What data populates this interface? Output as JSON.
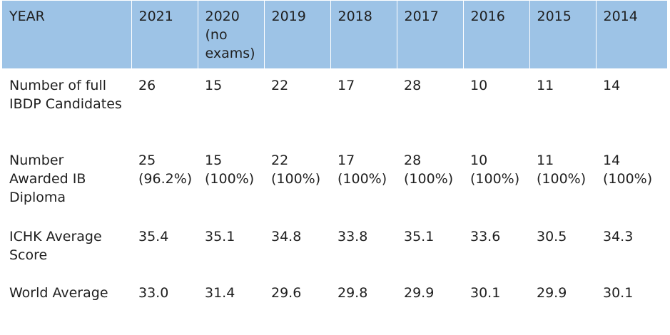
{
  "header": {
    "year_label": "YEAR",
    "years": [
      "2021",
      "2020\n(no\nexams)",
      "2019",
      "2018",
      "2017",
      "2016",
      "2015",
      "2014"
    ]
  },
  "rows": [
    {
      "label": "Number of full IBDP Candidates",
      "values": [
        "26",
        "15",
        "22",
        "17",
        "28",
        "10",
        "11",
        "14"
      ]
    },
    {
      "label": "Number Awarded IB Diploma",
      "values": [
        "25 (96.2%)",
        "15 (100%)",
        "22 (100%)",
        "17 (100%)",
        "28 (100%)",
        "10 (100%)",
        "11 (100%)",
        "14 (100%)"
      ]
    },
    {
      "label": "ICHK Average Score",
      "values": [
        "35.4",
        "35.1",
        "34.8",
        "33.8",
        "35.1",
        "33.6",
        "30.5",
        "34.3"
      ]
    },
    {
      "label": "World Average",
      "values": [
        "33.0",
        "31.4",
        "29.6",
        "29.8",
        "29.9",
        "30.1",
        "29.9",
        "30.1"
      ]
    }
  ],
  "colors": {
    "header_bg": "#9dc3e6",
    "text": "#1f1f1f",
    "background": "#ffffff"
  }
}
